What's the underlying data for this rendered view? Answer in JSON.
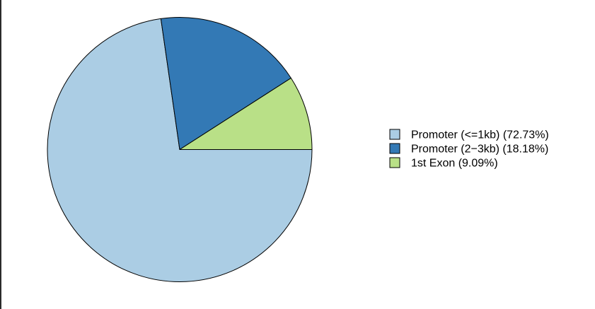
{
  "chart_data": {
    "type": "pie",
    "title": "",
    "start": "right",
    "direction": "clockwise",
    "legend_position": "right",
    "slices": [
      {
        "label": "Promoter (<=1kb) (72.73%)",
        "value": 72.73,
        "color": "#abcde4"
      },
      {
        "label": "Promoter (2−3kb) (18.18%)",
        "value": 18.18,
        "color": "#3379b5"
      },
      {
        "label": "1st Exon (9.09%)",
        "value": 9.09,
        "color": "#b9e087"
      }
    ]
  }
}
